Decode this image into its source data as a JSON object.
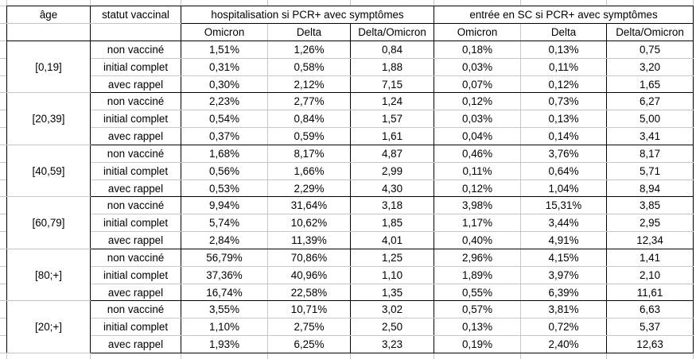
{
  "colors": {
    "table_border": "#000000",
    "sheet_gridline": "#c6c6c6",
    "text": "#000000",
    "background": "#ffffff"
  },
  "table": {
    "header": {
      "age": "âge",
      "status": "statut vaccinal",
      "hosp_section": "hospitalisation si PCR+ avec symptômes",
      "sc_section": "entrée en SC si PCR+ avec symptômes",
      "sub": [
        "Omicron",
        "Delta",
        "Delta/Omicron"
      ]
    },
    "groups": [
      {
        "age": "[0,19]",
        "rows": [
          {
            "status": "non vacciné",
            "values": [
              "1,51%",
              "1,26%",
              "0,84",
              "0,18%",
              "0,13%",
              "0,75"
            ]
          },
          {
            "status": "initial complet",
            "values": [
              "0,31%",
              "0,58%",
              "1,88",
              "0,03%",
              "0,11%",
              "3,20"
            ]
          },
          {
            "status": "avec rappel",
            "values": [
              "0,30%",
              "2,12%",
              "7,15",
              "0,07%",
              "0,12%",
              "1,65"
            ]
          }
        ]
      },
      {
        "age": "[20,39]",
        "rows": [
          {
            "status": "non vacciné",
            "values": [
              "2,23%",
              "2,77%",
              "1,24",
              "0,12%",
              "0,73%",
              "6,27"
            ]
          },
          {
            "status": "initial complet",
            "values": [
              "0,54%",
              "0,84%",
              "1,57",
              "0,03%",
              "0,13%",
              "5,00"
            ]
          },
          {
            "status": "avec rappel",
            "values": [
              "0,37%",
              "0,59%",
              "1,61",
              "0,04%",
              "0,14%",
              "3,41"
            ]
          }
        ]
      },
      {
        "age": "[40,59]",
        "rows": [
          {
            "status": "non vacciné",
            "values": [
              "1,68%",
              "8,17%",
              "4,87",
              "0,46%",
              "3,76%",
              "8,17"
            ]
          },
          {
            "status": "initial complet",
            "values": [
              "0,56%",
              "1,66%",
              "2,99",
              "0,11%",
              "0,64%",
              "5,71"
            ]
          },
          {
            "status": "avec rappel",
            "values": [
              "0,53%",
              "2,29%",
              "4,30",
              "0,12%",
              "1,04%",
              "8,94"
            ]
          }
        ]
      },
      {
        "age": "[60,79]",
        "rows": [
          {
            "status": "non vacciné",
            "values": [
              "9,94%",
              "31,64%",
              "3,18",
              "3,98%",
              "15,31%",
              "3,85"
            ]
          },
          {
            "status": "initial complet",
            "values": [
              "5,74%",
              "10,62%",
              "1,85",
              "1,17%",
              "3,44%",
              "2,95"
            ]
          },
          {
            "status": "avec rappel",
            "values": [
              "2,84%",
              "11,39%",
              "4,01",
              "0,40%",
              "4,91%",
              "12,34"
            ]
          }
        ]
      },
      {
        "age": "[80;+]",
        "rows": [
          {
            "status": "non vacciné",
            "values": [
              "56,79%",
              "70,86%",
              "1,25",
              "2,96%",
              "4,15%",
              "1,41"
            ]
          },
          {
            "status": "initial complet",
            "values": [
              "37,36%",
              "40,96%",
              "1,10",
              "1,89%",
              "3,97%",
              "2,10"
            ]
          },
          {
            "status": "avec rappel",
            "values": [
              "16,74%",
              "22,58%",
              "1,35",
              "0,55%",
              "6,39%",
              "11,61"
            ]
          }
        ]
      },
      {
        "age": "[20;+]",
        "rows": [
          {
            "status": "non vacciné",
            "values": [
              "3,55%",
              "10,71%",
              "3,02",
              "0,57%",
              "3,81%",
              "6,63"
            ]
          },
          {
            "status": "initial complet",
            "values": [
              "1,10%",
              "2,75%",
              "2,50",
              "0,13%",
              "0,72%",
              "5,37"
            ]
          },
          {
            "status": "avec rappel",
            "values": [
              "1,93%",
              "6,25%",
              "3,23",
              "0,19%",
              "2,40%",
              "12,63"
            ]
          }
        ]
      }
    ]
  }
}
